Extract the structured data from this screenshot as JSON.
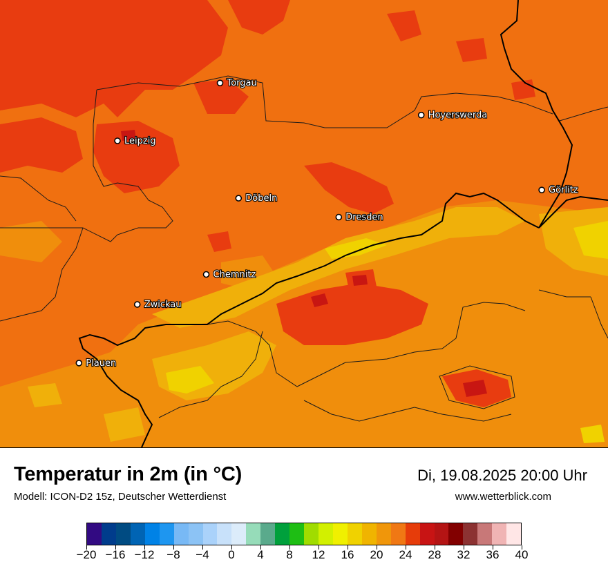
{
  "map": {
    "cities": [
      {
        "name": "Torgau",
        "lon": 13.006,
        "lat": 51.56
      },
      {
        "name": "Hoyerswerda",
        "lon": 14.245,
        "lat": 51.438
      },
      {
        "name": "Leipzig",
        "lon": 12.374,
        "lat": 51.34
      },
      {
        "name": "Görlitz",
        "lon": 14.987,
        "lat": 51.153
      },
      {
        "name": "Döbeln",
        "lon": 13.12,
        "lat": 51.122
      },
      {
        "name": "Dresden",
        "lon": 13.737,
        "lat": 51.05
      },
      {
        "name": "Chemnitz",
        "lon": 12.921,
        "lat": 50.832
      },
      {
        "name": "Zwickau",
        "lon": 12.496,
        "lat": 50.718
      },
      {
        "name": "Plauen",
        "lon": 12.137,
        "lat": 50.495
      }
    ],
    "colors": {
      "base": "#f07010",
      "warm": "#e83c10",
      "cool": "#f08e0c",
      "cooler": "#f0b00a",
      "coolest": "#f0d200",
      "hot": "#c81612"
    }
  },
  "footer": {
    "title": "Temperatur in 2m (in °C)",
    "model": "Modell: ICON-D2 15z, Deutscher Wetterdienst",
    "datetime": "Di, 19.08.2025 20:00 Uhr",
    "site": "www.wetterblick.com"
  },
  "legend": {
    "min": -20,
    "max": 40,
    "step": 2,
    "colors": [
      "#320a82",
      "#003c8c",
      "#004b82",
      "#0064b4",
      "#0082e6",
      "#1e96f0",
      "#78b9f5",
      "#8cc3f5",
      "#aad2fa",
      "#c8e1fa",
      "#dcecfa",
      "#96dcb9",
      "#5aaa8c",
      "#00a03c",
      "#1ebe14",
      "#a0dc00",
      "#d2f000",
      "#f0f000",
      "#f0d200",
      "#f0b400",
      "#f0960a",
      "#f07814",
      "#e63c0a",
      "#c81414",
      "#b41414",
      "#820000",
      "#8c3232",
      "#c87878",
      "#f0b4b4",
      "#ffe6e6"
    ],
    "tick_labels": [
      "−20",
      "−16",
      "−12",
      "−8",
      "−4",
      "0",
      "4",
      "8",
      "12",
      "16",
      "20",
      "24",
      "28",
      "32",
      "36",
      "40"
    ]
  }
}
